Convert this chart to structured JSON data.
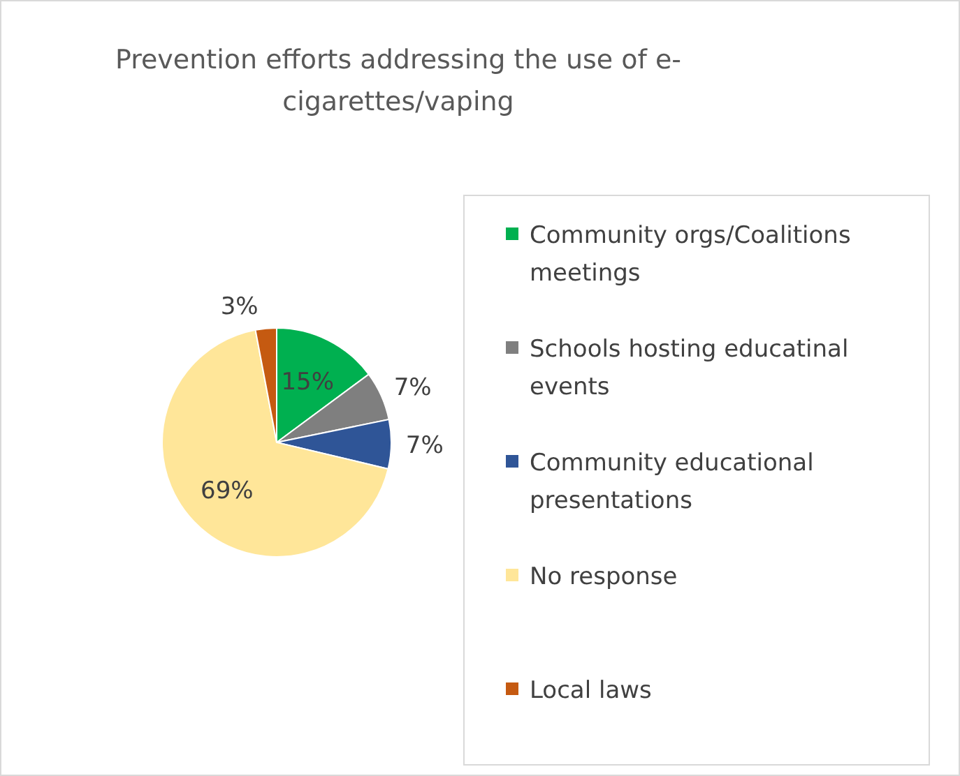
{
  "chart_data": {
    "type": "pie",
    "title": "Prevention efforts addressing the use of e-cigarettes/vaping",
    "categories": [
      "Community orgs/Coalitions meetings",
      "Schools hosting educatinal events",
      "Community educational presentations",
      "No response",
      "Local laws"
    ],
    "values": [
      15,
      7,
      7,
      69,
      3
    ],
    "colors": [
      "#00b050",
      "#7f7f7f",
      "#2f5597",
      "#ffe699",
      "#c55a11"
    ],
    "value_labels": [
      "15%",
      "7%",
      "7%",
      "69%",
      "3%"
    ],
    "legend": "right"
  }
}
